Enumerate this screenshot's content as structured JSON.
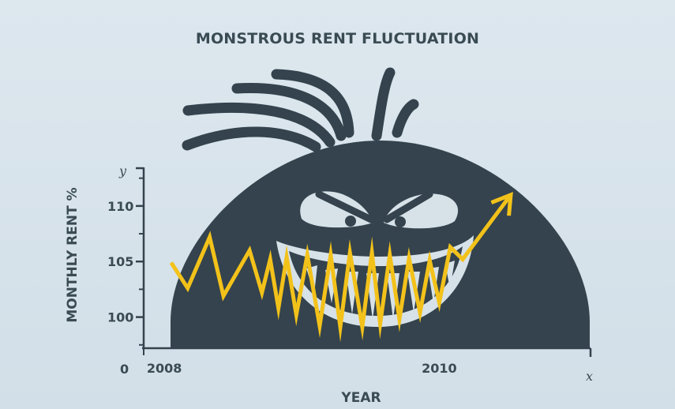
{
  "chart_data": {
    "type": "line",
    "title": "MONSTROUS RENT FLUCTUATION",
    "xlabel": "YEAR",
    "ylabel": "MONTHLY RENT %",
    "x_axis_letter": "x",
    "y_axis_letter": "y",
    "origin_label": "0",
    "x_tick_labels": [
      "2008",
      "2010"
    ],
    "x_ticks": [
      2008,
      2010
    ],
    "y_ticks": [
      100,
      105,
      110
    ],
    "xlim": [
      2007.85,
      2011.1
    ],
    "ylim": [
      97.2,
      113.4
    ],
    "series": [
      {
        "points": [
          [
            2008.05,
            104.9
          ],
          [
            2008.17,
            102.6
          ],
          [
            2008.33,
            107.2
          ],
          [
            2008.43,
            101.9
          ],
          [
            2008.62,
            106.0
          ],
          [
            2008.71,
            102.2
          ],
          [
            2008.77,
            105.2
          ],
          [
            2008.83,
            100.8
          ],
          [
            2008.89,
            105.4
          ],
          [
            2008.96,
            100.2
          ],
          [
            2009.04,
            105.6
          ],
          [
            2009.13,
            99.2
          ],
          [
            2009.21,
            105.6
          ],
          [
            2009.28,
            99.1
          ],
          [
            2009.35,
            105.8
          ],
          [
            2009.44,
            99.1
          ],
          [
            2009.51,
            105.8
          ],
          [
            2009.57,
            99.4
          ],
          [
            2009.64,
            105.6
          ],
          [
            2009.71,
            99.8
          ],
          [
            2009.78,
            105.3
          ],
          [
            2009.86,
            100.4
          ],
          [
            2009.93,
            105.1
          ],
          [
            2010.0,
            101.3
          ],
          [
            2010.08,
            106.3
          ],
          [
            2010.17,
            105.2
          ],
          [
            2010.52,
            111.0
          ]
        ],
        "color": "#f3c21a"
      }
    ],
    "grid": false,
    "legend": "none"
  },
  "colors": {
    "background": "#d8e3ea",
    "monster": "#34434d",
    "eye_white": "#d6e1e8",
    "accent_line": "#f3c21a",
    "text": "#3a4b54"
  },
  "illustration": "monster-face"
}
